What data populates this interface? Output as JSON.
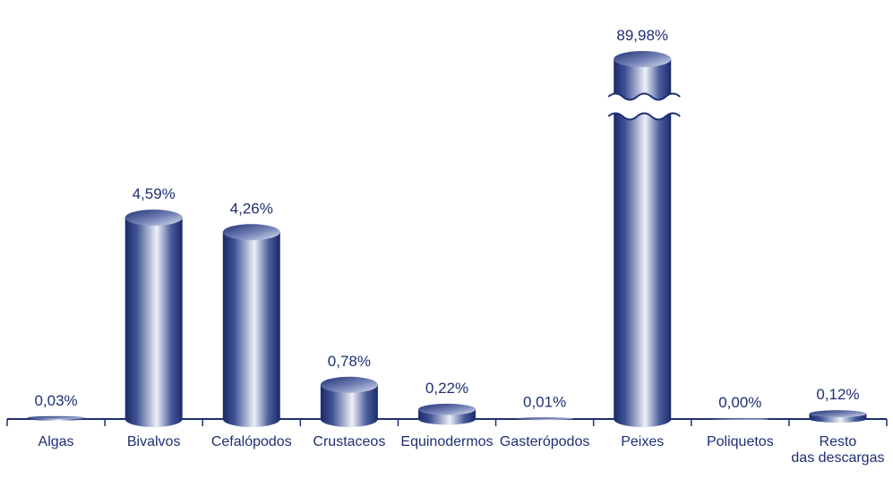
{
  "chart_data": {
    "type": "bar",
    "categories": [
      "Algas",
      "Bivalvos",
      "Cefalópodos",
      "Crustaceos",
      "Equinodermos",
      "Gasterópodos",
      "Peixes",
      "Poliquetos",
      "Resto\ndas descargas"
    ],
    "values": [
      0.03,
      4.59,
      4.26,
      0.78,
      0.22,
      0.01,
      89.98,
      0.0,
      0.12
    ],
    "value_labels": [
      "0,03%",
      "4,59%",
      "4,26%",
      "0,78%",
      "0,22%",
      "0,01%",
      "89,98%",
      "0,00%",
      "0,12%"
    ],
    "color": "#1f2f72"
  }
}
